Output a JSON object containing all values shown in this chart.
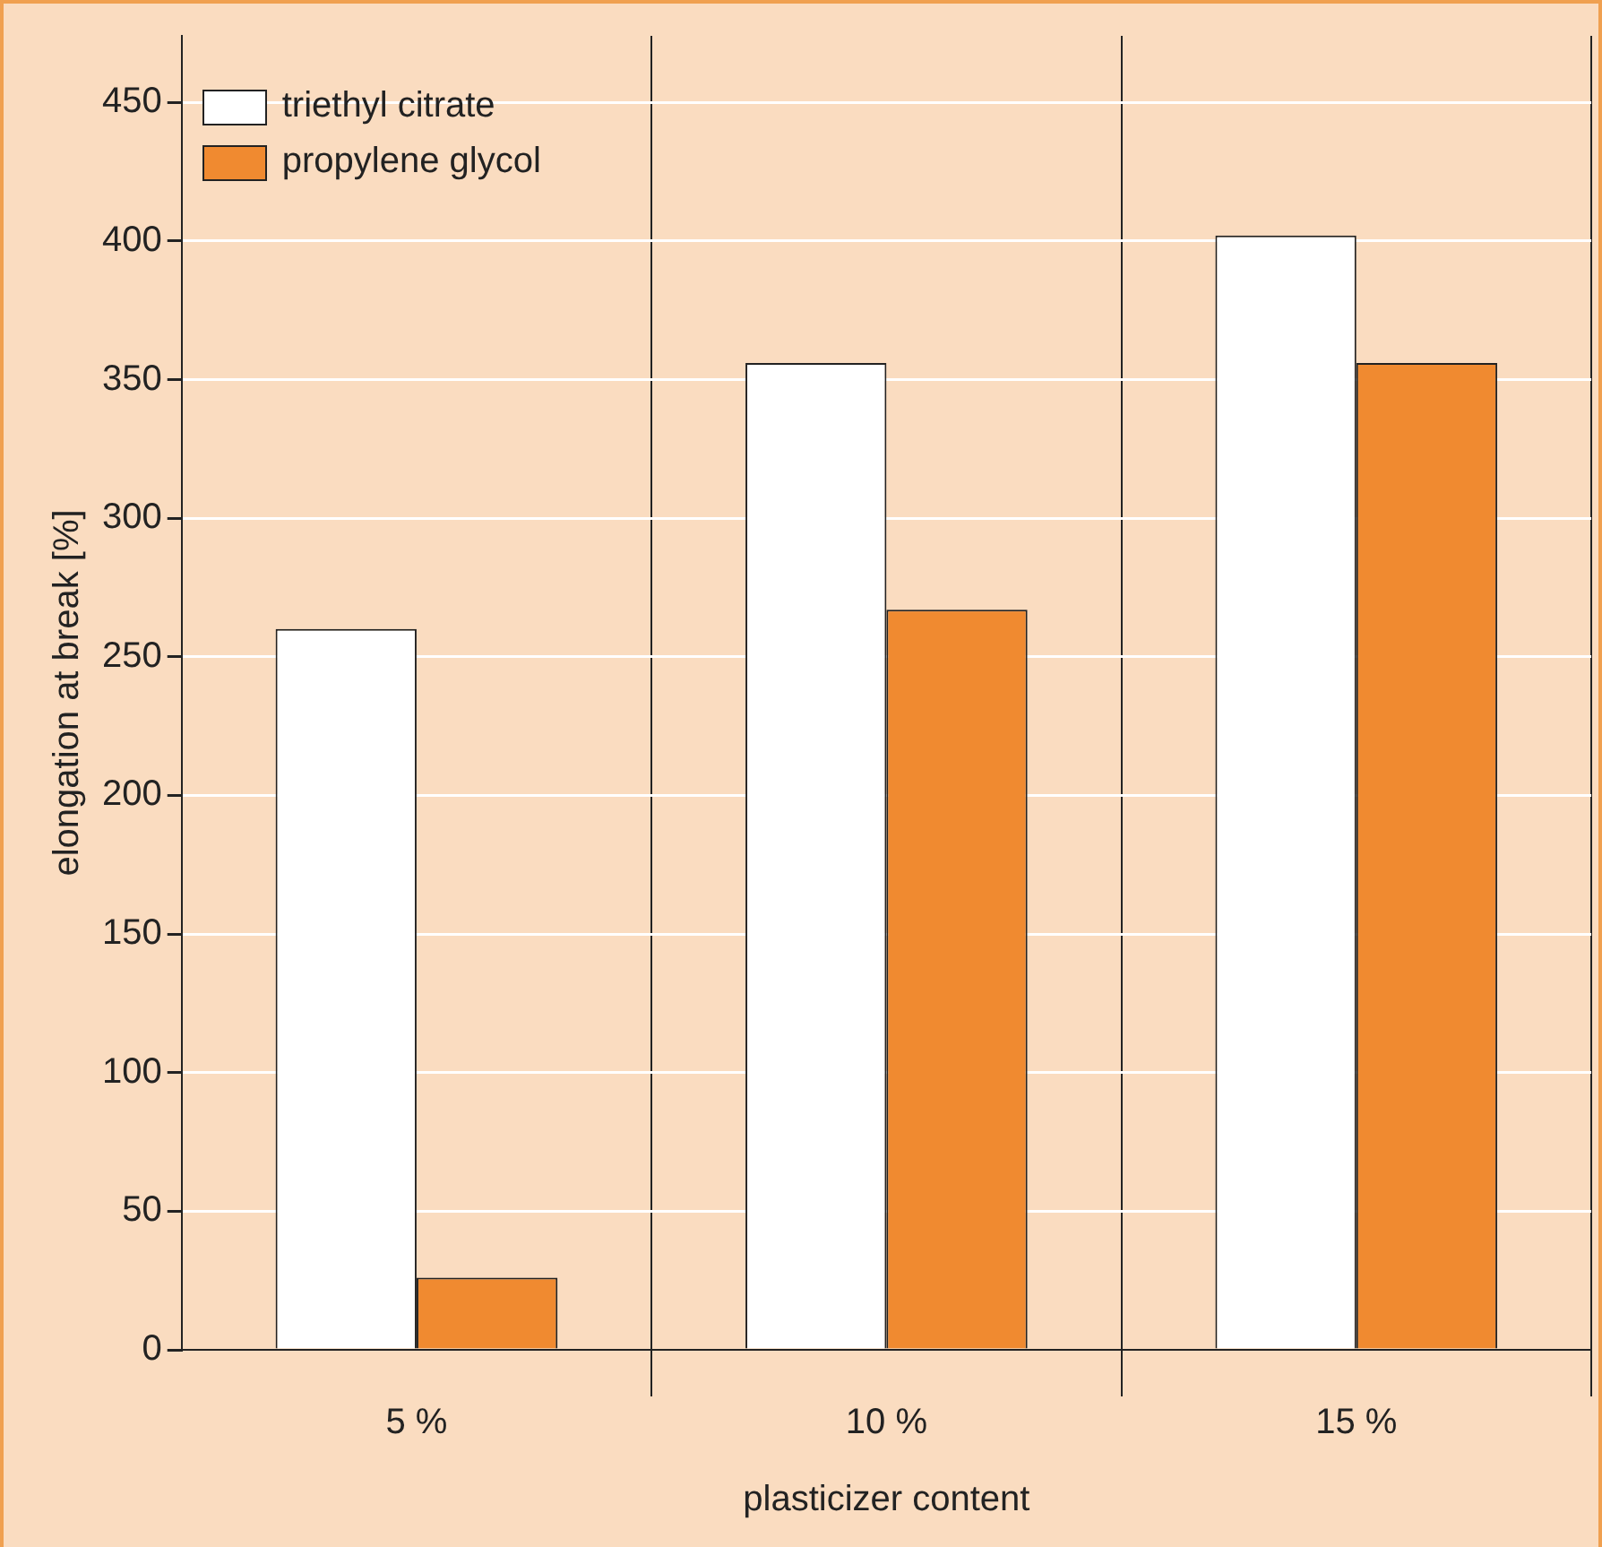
{
  "chart_data": {
    "type": "bar",
    "xlabel": "plasticizer content",
    "ylabel": "elongation at break [%]",
    "categories": [
      "5 %",
      "10 %",
      "15 %"
    ],
    "series": [
      {
        "name": "triethyl citrate",
        "color": "#ffffff",
        "values": [
          260,
          356,
          402
        ]
      },
      {
        "name": "propylene glycol",
        "color": "#f08a30",
        "values": [
          26,
          267,
          356
        ]
      }
    ],
    "ylim": [
      0,
      474
    ],
    "yticks": [
      0,
      50,
      100,
      150,
      200,
      250,
      300,
      350,
      400,
      450
    ],
    "grid": true,
    "legend": "top left"
  }
}
